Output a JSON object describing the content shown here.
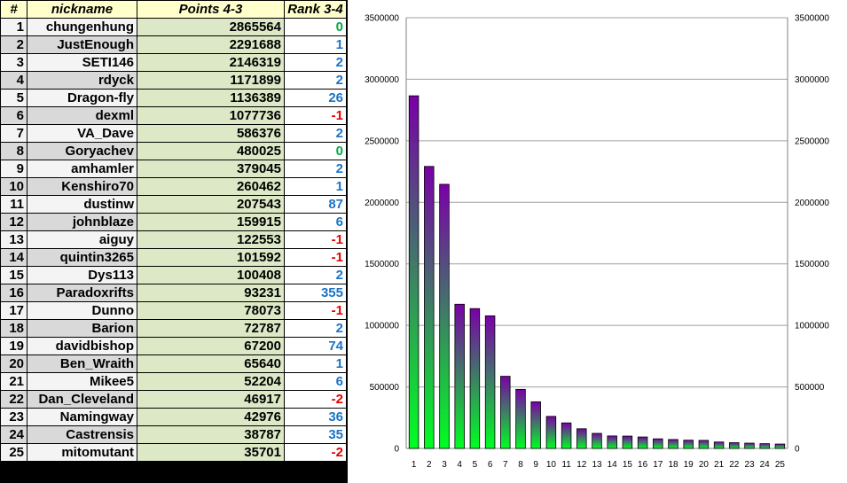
{
  "table": {
    "headers": [
      "#",
      "nickname",
      "Points 4-3",
      "Rank 3-4"
    ],
    "rows": [
      {
        "rank": "1",
        "nick": "chungenhung",
        "points": "2865564",
        "change": "0"
      },
      {
        "rank": "2",
        "nick": "JustEnough",
        "points": "2291688",
        "change": "1"
      },
      {
        "rank": "3",
        "nick": "SETI146",
        "points": "2146319",
        "change": "2"
      },
      {
        "rank": "4",
        "nick": "rdyck",
        "points": "1171899",
        "change": "2"
      },
      {
        "rank": "5",
        "nick": "Dragon-fly",
        "points": "1136389",
        "change": "26"
      },
      {
        "rank": "6",
        "nick": "dexml",
        "points": "1077736",
        "change": "-1"
      },
      {
        "rank": "7",
        "nick": "VA_Dave",
        "points": "586376",
        "change": "2"
      },
      {
        "rank": "8",
        "nick": "Goryachev",
        "points": "480025",
        "change": "0"
      },
      {
        "rank": "9",
        "nick": "amhamler",
        "points": "379045",
        "change": "2"
      },
      {
        "rank": "10",
        "nick": "Kenshiro70",
        "points": "260462",
        "change": "1"
      },
      {
        "rank": "11",
        "nick": "dustinw",
        "points": "207543",
        "change": "87"
      },
      {
        "rank": "12",
        "nick": "johnblaze",
        "points": "159915",
        "change": "6"
      },
      {
        "rank": "13",
        "nick": "aiguy",
        "points": "122553",
        "change": "-1"
      },
      {
        "rank": "14",
        "nick": "quintin3265",
        "points": "101592",
        "change": "-1"
      },
      {
        "rank": "15",
        "nick": "Dys113",
        "points": "100408",
        "change": "2"
      },
      {
        "rank": "16",
        "nick": "Paradoxrifts",
        "points": "93231",
        "change": "355"
      },
      {
        "rank": "17",
        "nick": "Dunno",
        "points": "78073",
        "change": "-1"
      },
      {
        "rank": "18",
        "nick": "Barion",
        "points": "72787",
        "change": "2"
      },
      {
        "rank": "19",
        "nick": "davidbishop",
        "points": "67200",
        "change": "74"
      },
      {
        "rank": "20",
        "nick": "Ben_Wraith",
        "points": "65640",
        "change": "1"
      },
      {
        "rank": "21",
        "nick": "Mikee5",
        "points": "52204",
        "change": "6"
      },
      {
        "rank": "22",
        "nick": "Dan_Cleveland",
        "points": "46917",
        "change": "-2"
      },
      {
        "rank": "23",
        "nick": "Namingway",
        "points": "42976",
        "change": "36"
      },
      {
        "rank": "24",
        "nick": "Castrensis",
        "points": "38787",
        "change": "35"
      },
      {
        "rank": "25",
        "nick": "mitomutant",
        "points": "35701",
        "change": "-2"
      }
    ]
  },
  "chart_data": {
    "type": "bar",
    "title": "",
    "xlabel": "",
    "ylabel": "",
    "categories": [
      "1",
      "2",
      "3",
      "4",
      "5",
      "6",
      "7",
      "8",
      "9",
      "10",
      "11",
      "12",
      "13",
      "14",
      "15",
      "16",
      "17",
      "18",
      "19",
      "20",
      "21",
      "22",
      "23",
      "24",
      "25"
    ],
    "values": [
      2865564,
      2291688,
      2146319,
      1171899,
      1136389,
      1077736,
      586376,
      480025,
      379045,
      260462,
      207543,
      159915,
      122553,
      101592,
      100408,
      93231,
      78073,
      72787,
      67200,
      65640,
      52204,
      46917,
      42976,
      38787,
      35701
    ],
    "ylim": [
      0,
      3500000
    ],
    "yticks": [
      "0",
      "500000",
      "1000000",
      "1500000",
      "2000000",
      "2500000",
      "3000000",
      "3500000"
    ],
    "ytick_values": [
      0,
      500000,
      1000000,
      1500000,
      2000000,
      2500000,
      3000000,
      3500000
    ],
    "grid": true,
    "secondary_axis": "right",
    "bar_gradient": {
      "top": "#7a00a8",
      "bottom": "#00ff22"
    }
  }
}
